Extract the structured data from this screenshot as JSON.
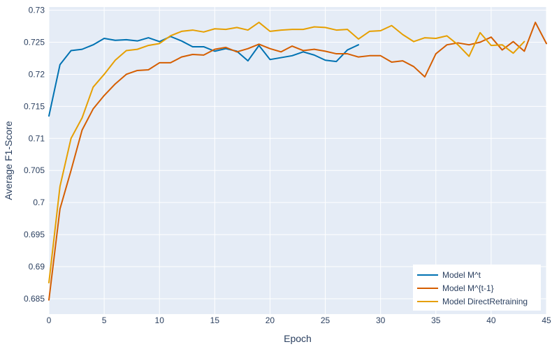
{
  "chart_data": {
    "type": "line",
    "xlabel": "Epoch",
    "ylabel": "Average F1-Score",
    "xlim": [
      0,
      45
    ],
    "ylim": [
      0.6826,
      0.7305
    ],
    "xticks": [
      0,
      5,
      10,
      15,
      20,
      25,
      30,
      35,
      40,
      45
    ],
    "yticks": [
      0.685,
      0.69,
      0.695,
      0.7,
      0.705,
      0.71,
      0.715,
      0.72,
      0.725,
      0.73
    ],
    "ytick_labels": [
      "0.685",
      "0.69",
      "0.695",
      "0.7",
      "0.705",
      "0.71",
      "0.715",
      "0.72",
      "0.725",
      "0.73"
    ],
    "grid": true,
    "legend_position": "bottom-right",
    "background": "#e5ecf6",
    "series": [
      {
        "name": "Model M^t",
        "color": "#0072b2",
        "x": [
          0,
          1,
          2,
          3,
          4,
          5,
          6,
          7,
          8,
          9,
          10,
          11,
          12,
          13,
          14,
          15,
          16,
          17,
          18,
          19,
          20,
          21,
          22,
          23,
          24,
          25,
          26,
          27,
          28
        ],
        "y": [
          0.7135,
          0.7215,
          0.7237,
          0.7239,
          0.7246,
          0.7256,
          0.7253,
          0.7254,
          0.7252,
          0.7257,
          0.7251,
          0.7259,
          0.7252,
          0.7243,
          0.7243,
          0.7236,
          0.724,
          0.7236,
          0.7221,
          0.7245,
          0.7223,
          0.7226,
          0.7229,
          0.7235,
          0.723,
          0.7222,
          0.722,
          0.7238,
          0.7246
        ]
      },
      {
        "name": "Model M^{t-1}",
        "color": "#d55e00",
        "x": [
          0,
          1,
          2,
          3,
          4,
          5,
          6,
          7,
          8,
          9,
          10,
          11,
          12,
          13,
          14,
          15,
          16,
          17,
          18,
          19,
          20,
          21,
          22,
          23,
          24,
          25,
          26,
          27,
          28,
          29,
          30,
          31,
          32,
          33,
          34,
          35,
          36,
          37,
          38,
          39,
          40,
          41,
          42,
          43,
          44,
          45
        ],
        "y": [
          0.6848,
          0.699,
          0.705,
          0.7113,
          0.7146,
          0.7167,
          0.7185,
          0.72,
          0.7206,
          0.7207,
          0.7218,
          0.7218,
          0.7227,
          0.7231,
          0.723,
          0.7239,
          0.7242,
          0.7235,
          0.724,
          0.7247,
          0.724,
          0.7235,
          0.7244,
          0.7237,
          0.7239,
          0.7236,
          0.7232,
          0.7232,
          0.7227,
          0.7229,
          0.7229,
          0.7219,
          0.7221,
          0.7212,
          0.7196,
          0.7232,
          0.7246,
          0.7249,
          0.7246,
          0.725,
          0.7258,
          0.7238,
          0.7251,
          0.7236,
          0.7281,
          0.7248
        ]
      },
      {
        "name": "Model DirectRetraining",
        "color": "#e69f00",
        "x": [
          0,
          1,
          2,
          3,
          4,
          5,
          6,
          7,
          8,
          9,
          10,
          11,
          12,
          13,
          14,
          15,
          16,
          17,
          18,
          19,
          20,
          21,
          22,
          23,
          24,
          25,
          26,
          27,
          28,
          29,
          30,
          31,
          32,
          33,
          34,
          35,
          36,
          37,
          38,
          39,
          40,
          41,
          42,
          43
        ],
        "y": [
          0.6875,
          0.7025,
          0.71,
          0.7132,
          0.718,
          0.72,
          0.7222,
          0.7237,
          0.7239,
          0.7245,
          0.7248,
          0.726,
          0.7267,
          0.7269,
          0.7266,
          0.7271,
          0.727,
          0.7273,
          0.7269,
          0.7281,
          0.7267,
          0.7269,
          0.727,
          0.727,
          0.7274,
          0.7273,
          0.7269,
          0.727,
          0.7255,
          0.7267,
          0.7268,
          0.7276,
          0.7262,
          0.7251,
          0.7257,
          0.7256,
          0.726,
          0.7246,
          0.7228,
          0.7265,
          0.7245,
          0.7246,
          0.7233,
          0.7251
        ]
      }
    ]
  }
}
